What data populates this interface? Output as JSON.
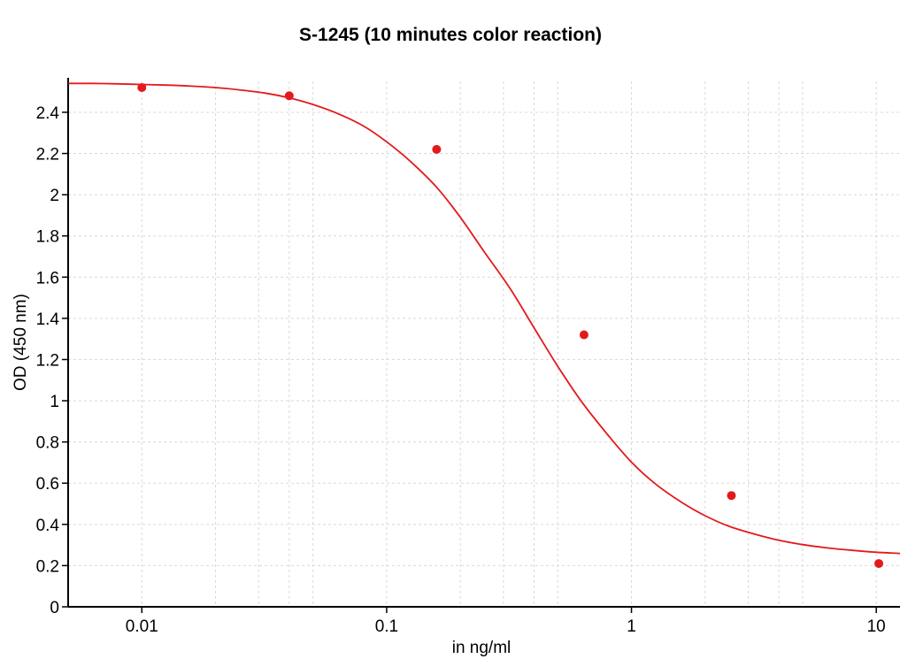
{
  "chart_data": {
    "type": "scatter",
    "title": "S-1245 (10 minutes color reaction)",
    "xlabel": "in ng/ml",
    "ylabel": "OD (450 nm)",
    "x_scale": "log",
    "xlim": [
      0.005,
      12.5
    ],
    "ylim": [
      0,
      2.55
    ],
    "x_ticks": [
      {
        "value": 0.01,
        "label": "0.01"
      },
      {
        "value": 0.1,
        "label": "0.1"
      },
      {
        "value": 1,
        "label": "1"
      },
      {
        "value": 10,
        "label": "10"
      }
    ],
    "y_ticks": [
      {
        "value": 0,
        "label": "0"
      },
      {
        "value": 0.2,
        "label": "0.2"
      },
      {
        "value": 0.4,
        "label": "0.4"
      },
      {
        "value": 0.6,
        "label": "0.6"
      },
      {
        "value": 0.8,
        "label": "0.8"
      },
      {
        "value": 1,
        "label": "1"
      },
      {
        "value": 1.2,
        "label": "1.2"
      },
      {
        "value": 1.4,
        "label": "1.4"
      },
      {
        "value": 1.6,
        "label": "1.6"
      },
      {
        "value": 1.8,
        "label": "1.8"
      },
      {
        "value": 2,
        "label": "2"
      },
      {
        "value": 2.2,
        "label": "2.2"
      },
      {
        "value": 2.4,
        "label": "2.4"
      }
    ],
    "grid": true,
    "colors": {
      "series": "#e31a1c",
      "grid": "#d9d9d9",
      "axis": "#000000"
    },
    "series": [
      {
        "kind": "points",
        "x": [
          0.01,
          0.04,
          0.16,
          0.64,
          2.56,
          10.24
        ],
        "y": [
          2.52,
          2.48,
          2.22,
          1.32,
          0.54,
          0.21
        ]
      },
      {
        "kind": "fitted-curve",
        "x": [
          0.005,
          0.0063,
          0.008,
          0.01,
          0.0126,
          0.016,
          0.02,
          0.025,
          0.032,
          0.04,
          0.05,
          0.063,
          0.08,
          0.1,
          0.126,
          0.16,
          0.2,
          0.25,
          0.32,
          0.4,
          0.5,
          0.63,
          0.8,
          1,
          1.26,
          1.6,
          2,
          2.5,
          3.2,
          4,
          5,
          6.3,
          8,
          10,
          12.6
        ],
        "y": [
          2.54,
          2.54,
          2.538,
          2.535,
          2.532,
          2.527,
          2.52,
          2.509,
          2.493,
          2.47,
          2.438,
          2.394,
          2.335,
          2.257,
          2.158,
          2.036,
          1.89,
          1.724,
          1.543,
          1.354,
          1.167,
          0.991,
          0.835,
          0.702,
          0.594,
          0.508,
          0.442,
          0.391,
          0.352,
          0.323,
          0.302,
          0.286,
          0.274,
          0.265,
          0.259
        ]
      }
    ]
  }
}
